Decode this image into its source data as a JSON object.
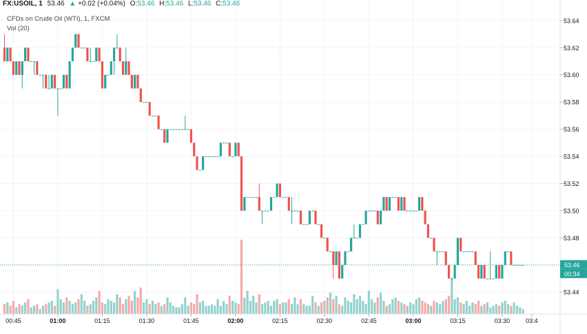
{
  "header": {
    "symbol": "FX:USOIL, 1",
    "price": "53.46",
    "change": "+0.02 (+0.04%)",
    "o_label": "O:",
    "o_val": "53.46",
    "h_label": "H:",
    "h_val": "53.46",
    "l_label": "L:",
    "l_val": "53.46",
    "c_label": "C:",
    "c_val": "53.46",
    "subtitle": "CFDs on Crude Oil (WTI), 1, FXCM",
    "volume_label": "Vol (20)"
  },
  "colors": {
    "up": "#26a69a",
    "down": "#ef5350",
    "vol_up": "#93d2cc",
    "vol_down": "#f7a9a7",
    "price_line": "#26a69a"
  },
  "chart_data": {
    "type": "candlestick",
    "y_ticks": [
      "53.64",
      "53.62",
      "53.60",
      "53.58",
      "53.56",
      "53.54",
      "53.52",
      "53.50",
      "53.48",
      "53.46",
      "53.44"
    ],
    "ylim": [
      53.432,
      53.646
    ],
    "x_ticks": [
      "00:45",
      "01:00",
      "01:15",
      "01:30",
      "01:45",
      "02:00",
      "02:15",
      "02:30",
      "02:45",
      "03:00",
      "03:15",
      "03:30",
      "03:4"
    ],
    "x_tick_bold": [
      "01:00",
      "02:00",
      "03:00"
    ],
    "current_price": "53.46",
    "countdown": "00:34",
    "time_start": "00:42",
    "minutes_per_bar": 1,
    "candles": [
      [
        53.62,
        53.63,
        53.61,
        53.61
      ],
      [
        53.61,
        53.62,
        53.61,
        53.62
      ],
      [
        53.62,
        53.62,
        53.61,
        53.61
      ],
      [
        53.61,
        53.61,
        53.6,
        53.6
      ],
      [
        53.6,
        53.61,
        53.6,
        53.61
      ],
      [
        53.61,
        53.61,
        53.6,
        53.6
      ],
      [
        53.6,
        53.61,
        53.59,
        53.61
      ],
      [
        53.61,
        53.62,
        53.61,
        53.62
      ],
      [
        53.62,
        53.62,
        53.61,
        53.61
      ],
      [
        53.61,
        53.61,
        53.61,
        53.61
      ],
      [
        53.61,
        53.61,
        53.6,
        53.61
      ],
      [
        53.61,
        53.61,
        53.6,
        53.6
      ],
      [
        53.6,
        53.6,
        53.6,
        53.6
      ],
      [
        53.6,
        53.6,
        53.59,
        53.6
      ],
      [
        53.6,
        53.6,
        53.59,
        53.59
      ],
      [
        53.59,
        53.6,
        53.59,
        53.59
      ],
      [
        53.59,
        53.6,
        53.59,
        53.6
      ],
      [
        53.6,
        53.6,
        53.59,
        53.59
      ],
      [
        53.59,
        53.59,
        53.57,
        53.59
      ],
      [
        53.59,
        53.59,
        53.59,
        53.59
      ],
      [
        53.59,
        53.6,
        53.59,
        53.6
      ],
      [
        53.6,
        53.6,
        53.59,
        53.59
      ],
      [
        53.59,
        53.61,
        53.59,
        53.61
      ],
      [
        53.61,
        53.62,
        53.61,
        53.62
      ],
      [
        53.62,
        53.63,
        53.62,
        53.63
      ],
      [
        53.63,
        53.63,
        53.62,
        53.62
      ],
      [
        53.62,
        53.62,
        53.62,
        53.62
      ],
      [
        53.62,
        53.62,
        53.62,
        53.62
      ],
      [
        53.62,
        53.62,
        53.61,
        53.61
      ],
      [
        53.61,
        53.62,
        53.61,
        53.61
      ],
      [
        53.61,
        53.61,
        53.61,
        53.61
      ],
      [
        53.61,
        53.62,
        53.61,
        53.62
      ],
      [
        53.62,
        53.62,
        53.61,
        53.61
      ],
      [
        53.61,
        53.61,
        53.59,
        53.59
      ],
      [
        53.59,
        53.6,
        53.59,
        53.6
      ],
      [
        53.6,
        53.6,
        53.6,
        53.6
      ],
      [
        53.6,
        53.61,
        53.6,
        53.61
      ],
      [
        53.61,
        53.62,
        53.6,
        53.62
      ],
      [
        53.62,
        53.63,
        53.62,
        53.62
      ],
      [
        53.62,
        53.62,
        53.61,
        53.61
      ],
      [
        53.61,
        53.61,
        53.6,
        53.6
      ],
      [
        53.6,
        53.62,
        53.6,
        53.61
      ],
      [
        53.61,
        53.61,
        53.6,
        53.6
      ],
      [
        53.6,
        53.6,
        53.59,
        53.59
      ],
      [
        53.59,
        53.6,
        53.59,
        53.6
      ],
      [
        53.6,
        53.6,
        53.59,
        53.59
      ],
      [
        53.59,
        53.59,
        53.58,
        53.58
      ],
      [
        53.58,
        53.58,
        53.58,
        53.58
      ],
      [
        53.58,
        53.58,
        53.58,
        53.58
      ],
      [
        53.58,
        53.58,
        53.57,
        53.57
      ],
      [
        53.57,
        53.57,
        53.57,
        53.57
      ],
      [
        53.57,
        53.57,
        53.57,
        53.57
      ],
      [
        53.57,
        53.57,
        53.56,
        53.56
      ],
      [
        53.56,
        53.56,
        53.56,
        53.56
      ],
      [
        53.56,
        53.56,
        53.55,
        53.55
      ],
      [
        53.55,
        53.56,
        53.55,
        53.56
      ],
      [
        53.56,
        53.56,
        53.56,
        53.56
      ],
      [
        53.56,
        53.56,
        53.56,
        53.56
      ],
      [
        53.56,
        53.56,
        53.56,
        53.56
      ],
      [
        53.56,
        53.56,
        53.56,
        53.56
      ],
      [
        53.56,
        53.56,
        53.56,
        53.56
      ],
      [
        53.56,
        53.57,
        53.56,
        53.56
      ],
      [
        53.56,
        53.56,
        53.56,
        53.56
      ],
      [
        53.56,
        53.56,
        53.55,
        53.55
      ],
      [
        53.55,
        53.55,
        53.54,
        53.54
      ],
      [
        53.54,
        53.54,
        53.53,
        53.53
      ],
      [
        53.53,
        53.53,
        53.53,
        53.53
      ],
      [
        53.53,
        53.54,
        53.53,
        53.54
      ],
      [
        53.54,
        53.54,
        53.54,
        53.54
      ],
      [
        53.54,
        53.54,
        53.54,
        53.54
      ],
      [
        53.54,
        53.54,
        53.54,
        53.54
      ],
      [
        53.54,
        53.54,
        53.54,
        53.54
      ],
      [
        53.54,
        53.54,
        53.54,
        53.54
      ],
      [
        53.54,
        53.55,
        53.54,
        53.55
      ],
      [
        53.55,
        53.55,
        53.55,
        53.55
      ],
      [
        53.55,
        53.55,
        53.55,
        53.55
      ],
      [
        53.55,
        53.55,
        53.54,
        53.54
      ],
      [
        53.54,
        53.54,
        53.54,
        53.54
      ],
      [
        53.54,
        53.55,
        53.54,
        53.55
      ],
      [
        53.55,
        53.55,
        53.54,
        53.54
      ],
      [
        53.54,
        53.54,
        53.5,
        53.5
      ],
      [
        53.5,
        53.51,
        53.5,
        53.51
      ],
      [
        53.51,
        53.51,
        53.51,
        53.51
      ],
      [
        53.51,
        53.51,
        53.51,
        53.51
      ],
      [
        53.51,
        53.51,
        53.51,
        53.51
      ],
      [
        53.51,
        53.51,
        53.51,
        53.51
      ],
      [
        53.51,
        53.52,
        53.5,
        53.5
      ],
      [
        53.5,
        53.5,
        53.49,
        53.5
      ],
      [
        53.5,
        53.5,
        53.5,
        53.5
      ],
      [
        53.5,
        53.5,
        53.5,
        53.5
      ],
      [
        53.5,
        53.51,
        53.5,
        53.51
      ],
      [
        53.51,
        53.51,
        53.51,
        53.51
      ],
      [
        53.51,
        53.52,
        53.51,
        53.52
      ],
      [
        53.52,
        53.52,
        53.51,
        53.51
      ],
      [
        53.51,
        53.51,
        53.51,
        53.51
      ],
      [
        53.51,
        53.51,
        53.51,
        53.51
      ],
      [
        53.51,
        53.51,
        53.5,
        53.5
      ],
      [
        53.5,
        53.51,
        53.49,
        53.5
      ],
      [
        53.5,
        53.5,
        53.5,
        53.5
      ],
      [
        53.5,
        53.5,
        53.5,
        53.5
      ],
      [
        53.5,
        53.5,
        53.49,
        53.49
      ],
      [
        53.49,
        53.49,
        53.49,
        53.49
      ],
      [
        53.49,
        53.49,
        53.49,
        53.49
      ],
      [
        53.49,
        53.5,
        53.49,
        53.5
      ],
      [
        53.5,
        53.5,
        53.5,
        53.5
      ],
      [
        53.5,
        53.5,
        53.49,
        53.49
      ],
      [
        53.49,
        53.49,
        53.49,
        53.49
      ],
      [
        53.49,
        53.49,
        53.48,
        53.48
      ],
      [
        53.48,
        53.48,
        53.48,
        53.48
      ],
      [
        53.48,
        53.48,
        53.47,
        53.47
      ],
      [
        53.47,
        53.47,
        53.47,
        53.47
      ],
      [
        53.47,
        53.47,
        53.45,
        53.46
      ],
      [
        53.46,
        53.47,
        53.46,
        53.47
      ],
      [
        53.47,
        53.47,
        53.45,
        53.45
      ],
      [
        53.45,
        53.46,
        53.45,
        53.46
      ],
      [
        53.46,
        53.47,
        53.46,
        53.47
      ],
      [
        53.47,
        53.47,
        53.47,
        53.47
      ],
      [
        53.47,
        53.48,
        53.47,
        53.48
      ],
      [
        53.48,
        53.49,
        53.48,
        53.48
      ],
      [
        53.48,
        53.48,
        53.48,
        53.48
      ],
      [
        53.48,
        53.49,
        53.48,
        53.49
      ],
      [
        53.49,
        53.49,
        53.49,
        53.49
      ],
      [
        53.49,
        53.5,
        53.49,
        53.5
      ],
      [
        53.5,
        53.5,
        53.5,
        53.5
      ],
      [
        53.5,
        53.5,
        53.5,
        53.5
      ],
      [
        53.5,
        53.5,
        53.5,
        53.5
      ],
      [
        53.5,
        53.5,
        53.49,
        53.49
      ],
      [
        53.49,
        53.5,
        53.49,
        53.5
      ],
      [
        53.5,
        53.51,
        53.5,
        53.51
      ],
      [
        53.51,
        53.51,
        53.5,
        53.5
      ],
      [
        53.5,
        53.51,
        53.5,
        53.51
      ],
      [
        53.51,
        53.51,
        53.51,
        53.51
      ],
      [
        53.51,
        53.51,
        53.51,
        53.51
      ],
      [
        53.51,
        53.51,
        53.5,
        53.5
      ],
      [
        53.5,
        53.51,
        53.5,
        53.51
      ],
      [
        53.51,
        53.51,
        53.5,
        53.5
      ],
      [
        53.5,
        53.5,
        53.5,
        53.5
      ],
      [
        53.5,
        53.5,
        53.5,
        53.5
      ],
      [
        53.5,
        53.5,
        53.5,
        53.5
      ],
      [
        53.5,
        53.5,
        53.5,
        53.5
      ],
      [
        53.5,
        53.51,
        53.5,
        53.51
      ],
      [
        53.51,
        53.51,
        53.5,
        53.5
      ],
      [
        53.5,
        53.5,
        53.49,
        53.49
      ],
      [
        53.49,
        53.49,
        53.48,
        53.48
      ],
      [
        53.48,
        53.48,
        53.48,
        53.48
      ],
      [
        53.48,
        53.48,
        53.47,
        53.47
      ],
      [
        53.47,
        53.47,
        53.46,
        53.47
      ],
      [
        53.47,
        53.47,
        53.47,
        53.47
      ],
      [
        53.47,
        53.47,
        53.47,
        53.47
      ],
      [
        53.47,
        53.47,
        53.46,
        53.46
      ],
      [
        53.46,
        53.46,
        53.45,
        53.45
      ],
      [
        53.45,
        53.45,
        53.45,
        53.45
      ],
      [
        53.45,
        53.46,
        53.45,
        53.46
      ],
      [
        53.46,
        53.48,
        53.46,
        53.48
      ],
      [
        53.48,
        53.48,
        53.47,
        53.47
      ],
      [
        53.47,
        53.47,
        53.47,
        53.47
      ],
      [
        53.47,
        53.47,
        53.47,
        53.47
      ],
      [
        53.47,
        53.47,
        53.47,
        53.47
      ],
      [
        53.47,
        53.47,
        53.47,
        53.47
      ],
      [
        53.47,
        53.47,
        53.46,
        53.46
      ],
      [
        53.46,
        53.46,
        53.45,
        53.45
      ],
      [
        53.45,
        53.46,
        53.45,
        53.46
      ],
      [
        53.46,
        53.46,
        53.45,
        53.45
      ],
      [
        53.45,
        53.45,
        53.45,
        53.45
      ],
      [
        53.45,
        53.47,
        53.45,
        53.45
      ],
      [
        53.45,
        53.45,
        53.45,
        53.45
      ],
      [
        53.45,
        53.46,
        53.45,
        53.46
      ],
      [
        53.46,
        53.46,
        53.45,
        53.45
      ],
      [
        53.45,
        53.46,
        53.45,
        53.46
      ],
      [
        53.46,
        53.47,
        53.46,
        53.47
      ],
      [
        53.47,
        53.47,
        53.47,
        53.47
      ],
      [
        53.47,
        53.47,
        53.46,
        53.46
      ],
      [
        53.46,
        53.46,
        53.46,
        53.46
      ],
      [
        53.46,
        53.46,
        53.46,
        53.46
      ],
      [
        53.46,
        53.46,
        53.46,
        53.46
      ],
      [
        53.46,
        53.46,
        53.46,
        53.46
      ]
    ],
    "volumes": [
      6,
      7,
      5,
      8,
      4,
      6,
      5,
      7,
      9,
      4,
      5,
      6,
      3,
      5,
      6,
      7,
      8,
      5,
      15,
      9,
      7,
      10,
      8,
      6,
      7,
      9,
      12,
      8,
      5,
      6,
      8,
      10,
      14,
      7,
      6,
      9,
      8,
      7,
      12,
      10,
      6,
      9,
      11,
      8,
      14,
      10,
      16,
      7,
      9,
      6,
      8,
      6,
      7,
      5,
      6,
      10,
      7,
      5,
      4,
      4,
      6,
      10,
      5,
      7,
      6,
      12,
      7,
      8,
      5,
      5,
      6,
      5,
      9,
      5,
      8,
      6,
      11,
      8,
      7,
      6,
      45,
      10,
      14,
      8,
      11,
      7,
      12,
      6,
      7,
      8,
      5,
      8,
      9,
      6,
      7,
      7,
      9,
      6,
      10,
      6,
      9,
      6,
      5,
      5,
      11,
      7,
      5,
      7,
      8,
      10,
      13,
      9,
      11,
      6,
      5,
      10,
      8,
      7,
      12,
      9,
      11,
      8,
      6,
      14,
      9,
      7,
      10,
      13,
      8,
      5,
      6,
      9,
      10,
      8,
      7,
      6,
      5,
      7,
      6,
      9,
      10,
      8,
      7,
      6,
      5,
      8,
      7,
      6,
      8,
      9,
      11,
      22,
      9,
      10,
      7,
      6,
      8,
      5,
      7,
      6,
      8,
      5,
      6,
      7,
      4,
      5,
      6,
      5,
      7,
      8,
      6,
      5,
      7,
      5,
      4,
      3,
      4,
      3,
      4,
      3,
      2,
      1,
      1
    ],
    "volume_max": 50
  }
}
